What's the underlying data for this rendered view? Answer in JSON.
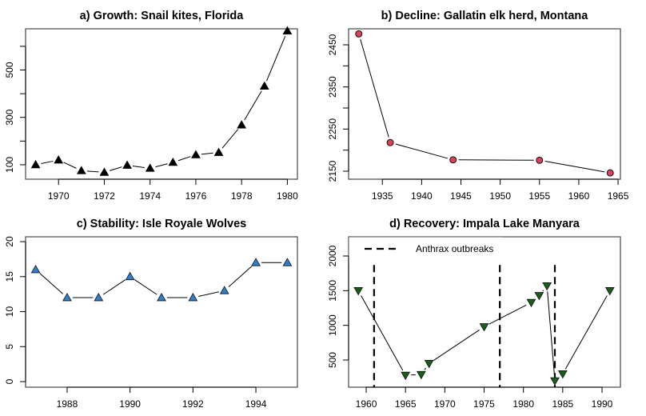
{
  "chart_data": [
    {
      "id": "a",
      "type": "line",
      "title": "a) Growth: Snail kites, Florida",
      "xlabel": "",
      "ylabel": "",
      "x": [
        1969,
        1970,
        1971,
        1972,
        1973,
        1974,
        1975,
        1976,
        1977,
        1978,
        1979,
        1980
      ],
      "series": [
        {
          "name": "Snail kites",
          "values": [
            100,
            120,
            75,
            68,
            98,
            85,
            110,
            142,
            152,
            268,
            432,
            665
          ],
          "marker": "triangle-up",
          "color": "#000000"
        }
      ],
      "xlim": [
        1968.56,
        1980.44
      ],
      "ylim": [
        39,
        674
      ],
      "xticks": [
        1970,
        1972,
        1974,
        1976,
        1978,
        1980
      ],
      "yticks": [
        100,
        200,
        300,
        400,
        500,
        600
      ],
      "ytick_labels": [
        "100",
        "",
        "300",
        "",
        "500",
        ""
      ],
      "grid": false
    },
    {
      "id": "b",
      "type": "line",
      "title": "b) Decline: Gallatin elk herd, Montana",
      "xlabel": "",
      "ylabel": "",
      "x": [
        1932,
        1936,
        1944,
        1955,
        1964
      ],
      "series": [
        {
          "name": "Gallatin elk",
          "values": [
            2476,
            2218,
            2177,
            2176,
            2146
          ],
          "marker": "circle",
          "color": "#D9435A"
        }
      ],
      "xlim": [
        1930.7,
        1965.3
      ],
      "ylim": [
        2131,
        2488
      ],
      "xticks": [
        1935,
        1940,
        1945,
        1950,
        1955,
        1960,
        1965
      ],
      "yticks": [
        2150,
        2200,
        2250,
        2300,
        2350,
        2400,
        2450
      ],
      "ytick_labels": [
        "2150",
        "",
        "2250",
        "",
        "2350",
        "",
        "2450"
      ],
      "grid": false
    },
    {
      "id": "c",
      "type": "line",
      "title": "c) Stability: Isle Royale Wolves",
      "xlabel": "",
      "ylabel": "",
      "x": [
        1987,
        1988,
        1989,
        1990,
        1991,
        1992,
        1993,
        1994,
        1995
      ],
      "series": [
        {
          "name": "Isle Royale wolves",
          "values": [
            16,
            12,
            12,
            15,
            12,
            12,
            13,
            17,
            17
          ],
          "marker": "triangle-up",
          "color": "#2F7FD0"
        }
      ],
      "xlim": [
        1986.68,
        1995.32
      ],
      "ylim": [
        -0.8,
        20.69
      ],
      "xticks": [
        1988,
        1990,
        1992,
        1994
      ],
      "yticks": [
        0,
        5,
        10,
        15,
        20
      ],
      "ytick_labels": [
        "0",
        "5",
        "10",
        "15",
        "20"
      ],
      "grid": false
    },
    {
      "id": "d",
      "type": "line",
      "title": "d) Recovery: Impala Lake Manyara",
      "xlabel": "",
      "ylabel": "",
      "x": [
        1959,
        1965,
        1967,
        1968,
        1975,
        1981,
        1982,
        1983,
        1984,
        1985,
        1991
      ],
      "series": [
        {
          "name": "Impala",
          "values": [
            1500,
            280,
            290,
            450,
            980,
            1330,
            1430,
            1570,
            200,
            300,
            1500
          ],
          "marker": "triangle-down",
          "color": "#1A5C1A"
        }
      ],
      "vlines": [
        1961,
        1977,
        1984
      ],
      "legend": {
        "label": "Anthrax outbreaks",
        "style": "dashed",
        "position": "top-left"
      },
      "xlim": [
        1957.76,
        1992.34
      ],
      "ylim": [
        108,
        2277
      ],
      "xticks": [
        1960,
        1965,
        1970,
        1975,
        1980,
        1985,
        1990
      ],
      "yticks": [
        500,
        1000,
        1500,
        2000
      ],
      "ytick_labels": [
        "500",
        "1000",
        "1500",
        "2000"
      ],
      "grid": false
    }
  ]
}
